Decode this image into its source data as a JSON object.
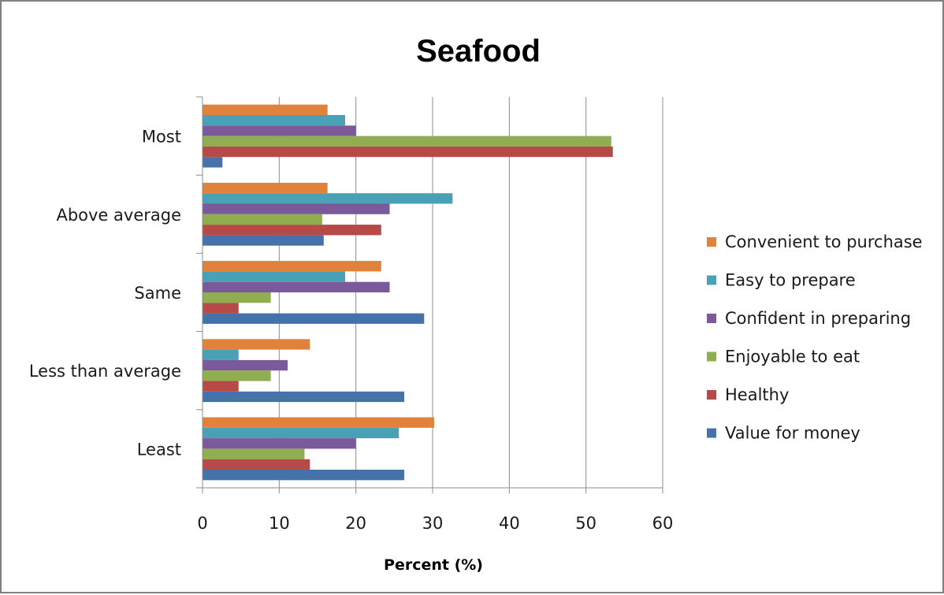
{
  "chart_data": {
    "type": "bar",
    "orientation": "horizontal",
    "title": "Seafood",
    "xlabel": "Percent (%)",
    "ylabel": "",
    "xlim": [
      0,
      60
    ],
    "x_ticks": [
      "0",
      "10",
      "20",
      "30",
      "40",
      "50",
      "60"
    ],
    "grid": "vertical",
    "legend_position": "right",
    "categories": [
      "Most",
      "Above average",
      "Same",
      "Less than average",
      "Least"
    ],
    "series": [
      {
        "name": "Convenient to purchase",
        "color": "#e0823c",
        "values": [
          16.3,
          16.3,
          23.3,
          14.0,
          30.2
        ]
      },
      {
        "name": "Easy to prepare",
        "color": "#4aa0b5",
        "values": [
          18.6,
          32.6,
          18.6,
          4.7,
          25.6
        ]
      },
      {
        "name": "Confident in preparing",
        "color": "#7b5a9b",
        "values": [
          20.0,
          24.4,
          24.4,
          11.1,
          20.0
        ]
      },
      {
        "name": "Enjoyable to eat",
        "color": "#8fae50",
        "values": [
          53.3,
          15.6,
          8.9,
          8.9,
          13.3
        ]
      },
      {
        "name": "Healthy",
        "color": "#b54a47",
        "values": [
          53.5,
          23.3,
          4.7,
          4.7,
          14.0
        ]
      },
      {
        "name": "Value for money",
        "color": "#4672aa",
        "values": [
          2.6,
          15.8,
          28.9,
          26.3,
          26.3
        ]
      }
    ]
  }
}
